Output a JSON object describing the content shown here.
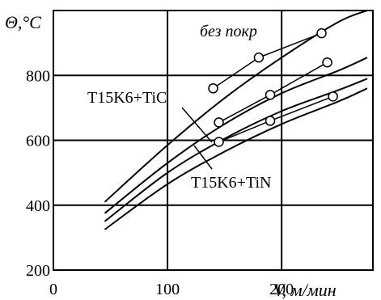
{
  "chart_data": {
    "type": "line",
    "xlabel": "V, м/мин",
    "ylabel": "Θ,°C",
    "xlim": [
      0,
      280
    ],
    "ylim": [
      200,
      1000
    ],
    "x_ticks": [
      "0",
      "100",
      "200"
    ],
    "y_ticks": [
      "200",
      "400",
      "600",
      "800"
    ],
    "grid": true,
    "series": [
      {
        "name": "без покр",
        "x": [
          45,
          100,
          150,
          200,
          250,
          275
        ],
        "y": [
          410,
          585,
          730,
          855,
          965,
          1000
        ]
      },
      {
        "name": "",
        "x": [
          45,
          100,
          150,
          200,
          250,
          275
        ],
        "y": [
          375,
          530,
          650,
          745,
          815,
          855
        ]
      },
      {
        "name": "T15K6+TiC",
        "x": [
          45,
          100,
          150,
          200,
          250,
          275
        ],
        "y": [
          350,
          500,
          605,
          690,
          755,
          790
        ]
      },
      {
        "name": "T15K6+TiN",
        "x": [
          45,
          100,
          150,
          200,
          250,
          275
        ],
        "y": [
          325,
          465,
          565,
          650,
          720,
          760
        ]
      }
    ],
    "experiments": [
      {
        "x": [
          140,
          180,
          235
        ],
        "y": [
          760,
          855,
          930
        ]
      },
      {
        "x": [
          145,
          190,
          240
        ],
        "y": [
          655,
          740,
          840
        ]
      },
      {
        "x": [
          145,
          190,
          245
        ],
        "y": [
          595,
          660,
          735
        ]
      }
    ],
    "annotations": {
      "uncoated": "без покр",
      "tic": "T15K6+TiC",
      "tin": "T15K6+TiN"
    }
  }
}
